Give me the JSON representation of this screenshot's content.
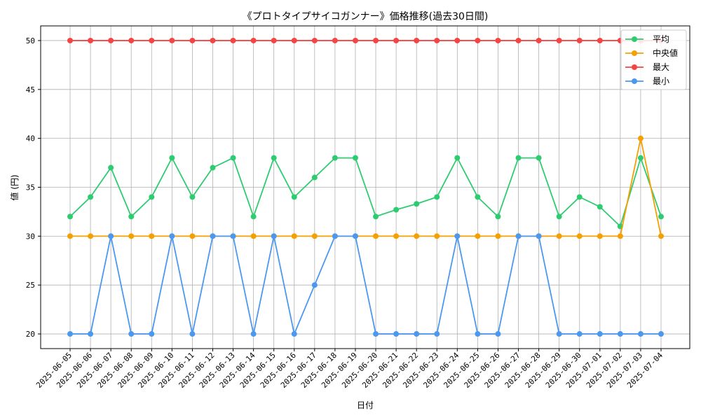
{
  "chart_data": {
    "type": "line",
    "title": "《プロトタイプサイコガンナー》価格推移(過去30日間)",
    "xlabel": "日付",
    "ylabel": "値 (円)",
    "ylim": [
      18.5,
      51.5
    ],
    "yticks": [
      20,
      25,
      30,
      35,
      40,
      45,
      50
    ],
    "grid": true,
    "legend_position": "top-right",
    "categories": [
      "2025-06-05",
      "2025-06-06",
      "2025-06-07",
      "2025-06-08",
      "2025-06-09",
      "2025-06-10",
      "2025-06-11",
      "2025-06-12",
      "2025-06-13",
      "2025-06-14",
      "2025-06-15",
      "2025-06-16",
      "2025-06-17",
      "2025-06-18",
      "2025-06-19",
      "2025-06-20",
      "2025-06-21",
      "2025-06-22",
      "2025-06-23",
      "2025-06-24",
      "2025-06-25",
      "2025-06-26",
      "2025-06-27",
      "2025-06-28",
      "2025-06-29",
      "2025-06-30",
      "2025-07-01",
      "2025-07-02",
      "2025-07-03",
      "2025-07-04"
    ],
    "series": [
      {
        "name": "平均",
        "color": "#2ecc71",
        "values": [
          32,
          34,
          37,
          32,
          34,
          38,
          34,
          37,
          38,
          32,
          38,
          34,
          36,
          38,
          38,
          32,
          32.7,
          33.3,
          34,
          38,
          34,
          32,
          38,
          38,
          32,
          34,
          33,
          31,
          38,
          32
        ]
      },
      {
        "name": "中央値",
        "color": "#f5a000",
        "values": [
          30,
          30,
          30,
          30,
          30,
          30,
          30,
          30,
          30,
          30,
          30,
          30,
          30,
          30,
          30,
          30,
          30,
          30,
          30,
          30,
          30,
          30,
          30,
          30,
          30,
          30,
          30,
          30,
          40,
          30
        ]
      },
      {
        "name": "最大",
        "color": "#f44444",
        "values": [
          50,
          50,
          50,
          50,
          50,
          50,
          50,
          50,
          50,
          50,
          50,
          50,
          50,
          50,
          50,
          50,
          50,
          50,
          50,
          50,
          50,
          50,
          50,
          50,
          50,
          50,
          50,
          50,
          50,
          50
        ]
      },
      {
        "name": "最小",
        "color": "#4a98f0",
        "values": [
          20,
          20,
          30,
          20,
          20,
          30,
          20,
          30,
          30,
          20,
          30,
          20,
          25,
          30,
          30,
          20,
          20,
          20,
          20,
          30,
          20,
          20,
          30,
          30,
          20,
          20,
          20,
          20,
          20,
          20
        ]
      }
    ]
  }
}
